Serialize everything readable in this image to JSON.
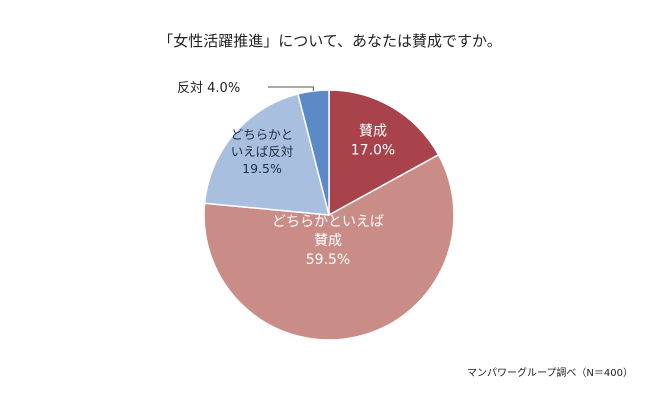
{
  "chart_data": {
    "type": "pie",
    "title": "「女性活躍推進」について、あなたは賛成ですか。",
    "start_angle_deg": 0,
    "direction": "clockwise",
    "slices": [
      {
        "id": "agree",
        "label_lines": [
          "賛成"
        ],
        "value": 17.0,
        "value_text": "17.0%",
        "color": "#a8434c",
        "text_color": "#ffffff"
      },
      {
        "id": "somewhat-agree",
        "label_lines": [
          "どちらかといえば",
          "賛成"
        ],
        "value": 59.5,
        "value_text": "59.5%",
        "color": "#c98c87",
        "text_color": "#ffffff"
      },
      {
        "id": "somewhat-oppose",
        "label_lines": [
          "どちらかと",
          "いえば反対"
        ],
        "value": 19.5,
        "value_text": "19.5%",
        "color": "#a8bfe0",
        "text_color": "#1f2d44"
      },
      {
        "id": "oppose",
        "label_lines": [
          "反対"
        ],
        "value": 4.0,
        "value_text": "4.0%",
        "color": "#5b8ac6",
        "text_color": "#222222",
        "outside_label": true
      }
    ]
  },
  "source_note": "マンパワーグループ調べ（N＝400）"
}
